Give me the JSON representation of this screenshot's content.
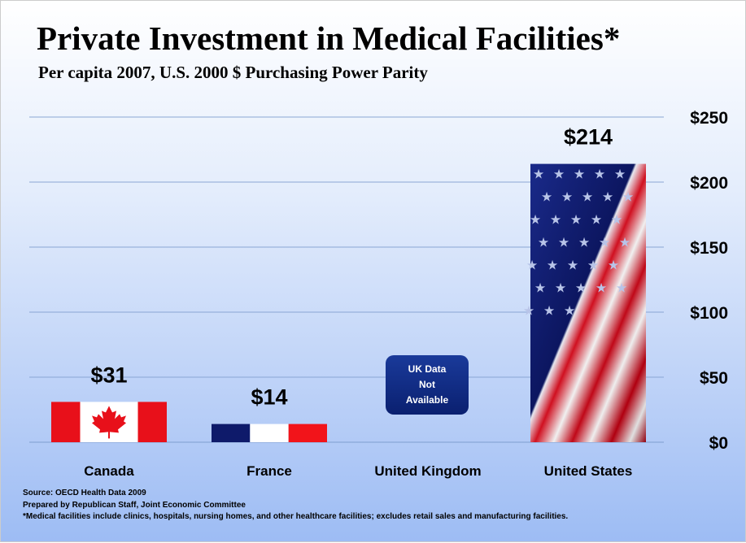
{
  "chart_data": {
    "type": "bar",
    "title": "Private Investment in Medical Facilities*",
    "subtitle": "Per capita 2007, U.S. 2000 $ Purchasing Power Parity",
    "categories": [
      "Canada",
      "France",
      "United Kingdom",
      "United States"
    ],
    "values": [
      31,
      14,
      null,
      214
    ],
    "data_labels": [
      "$31",
      "$14",
      "",
      "$214"
    ],
    "na_note": "UK Data\nNot\nAvailable",
    "ylim": [
      0,
      250
    ],
    "yticks": [
      0,
      50,
      100,
      150,
      200,
      250
    ],
    "ytick_labels": [
      "$0",
      "$50",
      "$100",
      "$150",
      "$200",
      "$250"
    ],
    "grid": true,
    "xlabel": "",
    "ylabel": ""
  },
  "footnotes": {
    "source": "Source:  OECD Health Data 2009",
    "prepared": "Prepared by Republican Staff, Joint Economic Committee",
    "note": "*Medical facilities include clinics, hospitals,  nursing homes, and other healthcare facilities; excludes retail sales and manufacturing  facilities."
  }
}
